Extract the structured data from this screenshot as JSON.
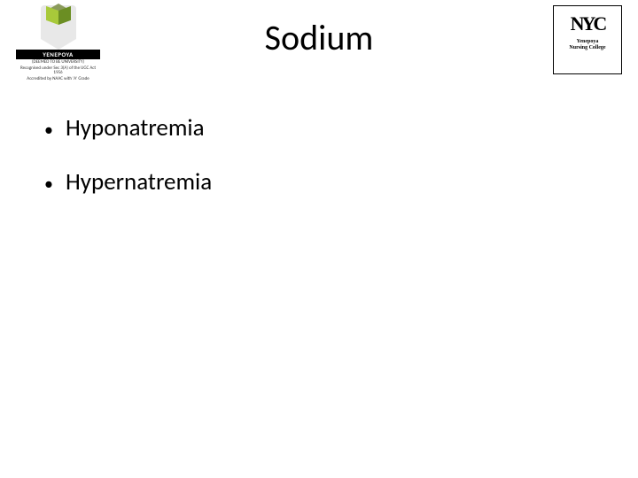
{
  "header": {
    "title": "Sodium",
    "title_fontsize": 40,
    "title_color": "#000000"
  },
  "logo_left": {
    "main_text": "YENEPOYA",
    "sub_line1": "(DEEMED TO BE UNIVERSITY)",
    "sub_line2": "Recognised under Sec 3(A) of the UGC Act 1956",
    "sub_line3": "Accredited by NAAC with 'A' Grade",
    "cube_colors": {
      "top": "#8a9a5b",
      "left": "#a8c93a",
      "right": "#6b8e23"
    },
    "shield_color": "#e8e8e8"
  },
  "logo_right": {
    "icon_text": "NYC",
    "line1": "Yenepoya",
    "line2": "Nursing College"
  },
  "bullets": [
    {
      "text": "Hyponatremia"
    },
    {
      "text": "Hypernatremia"
    }
  ],
  "bullet_fontsize": 27,
  "bullet_color": "#000000",
  "background_color": "#ffffff"
}
